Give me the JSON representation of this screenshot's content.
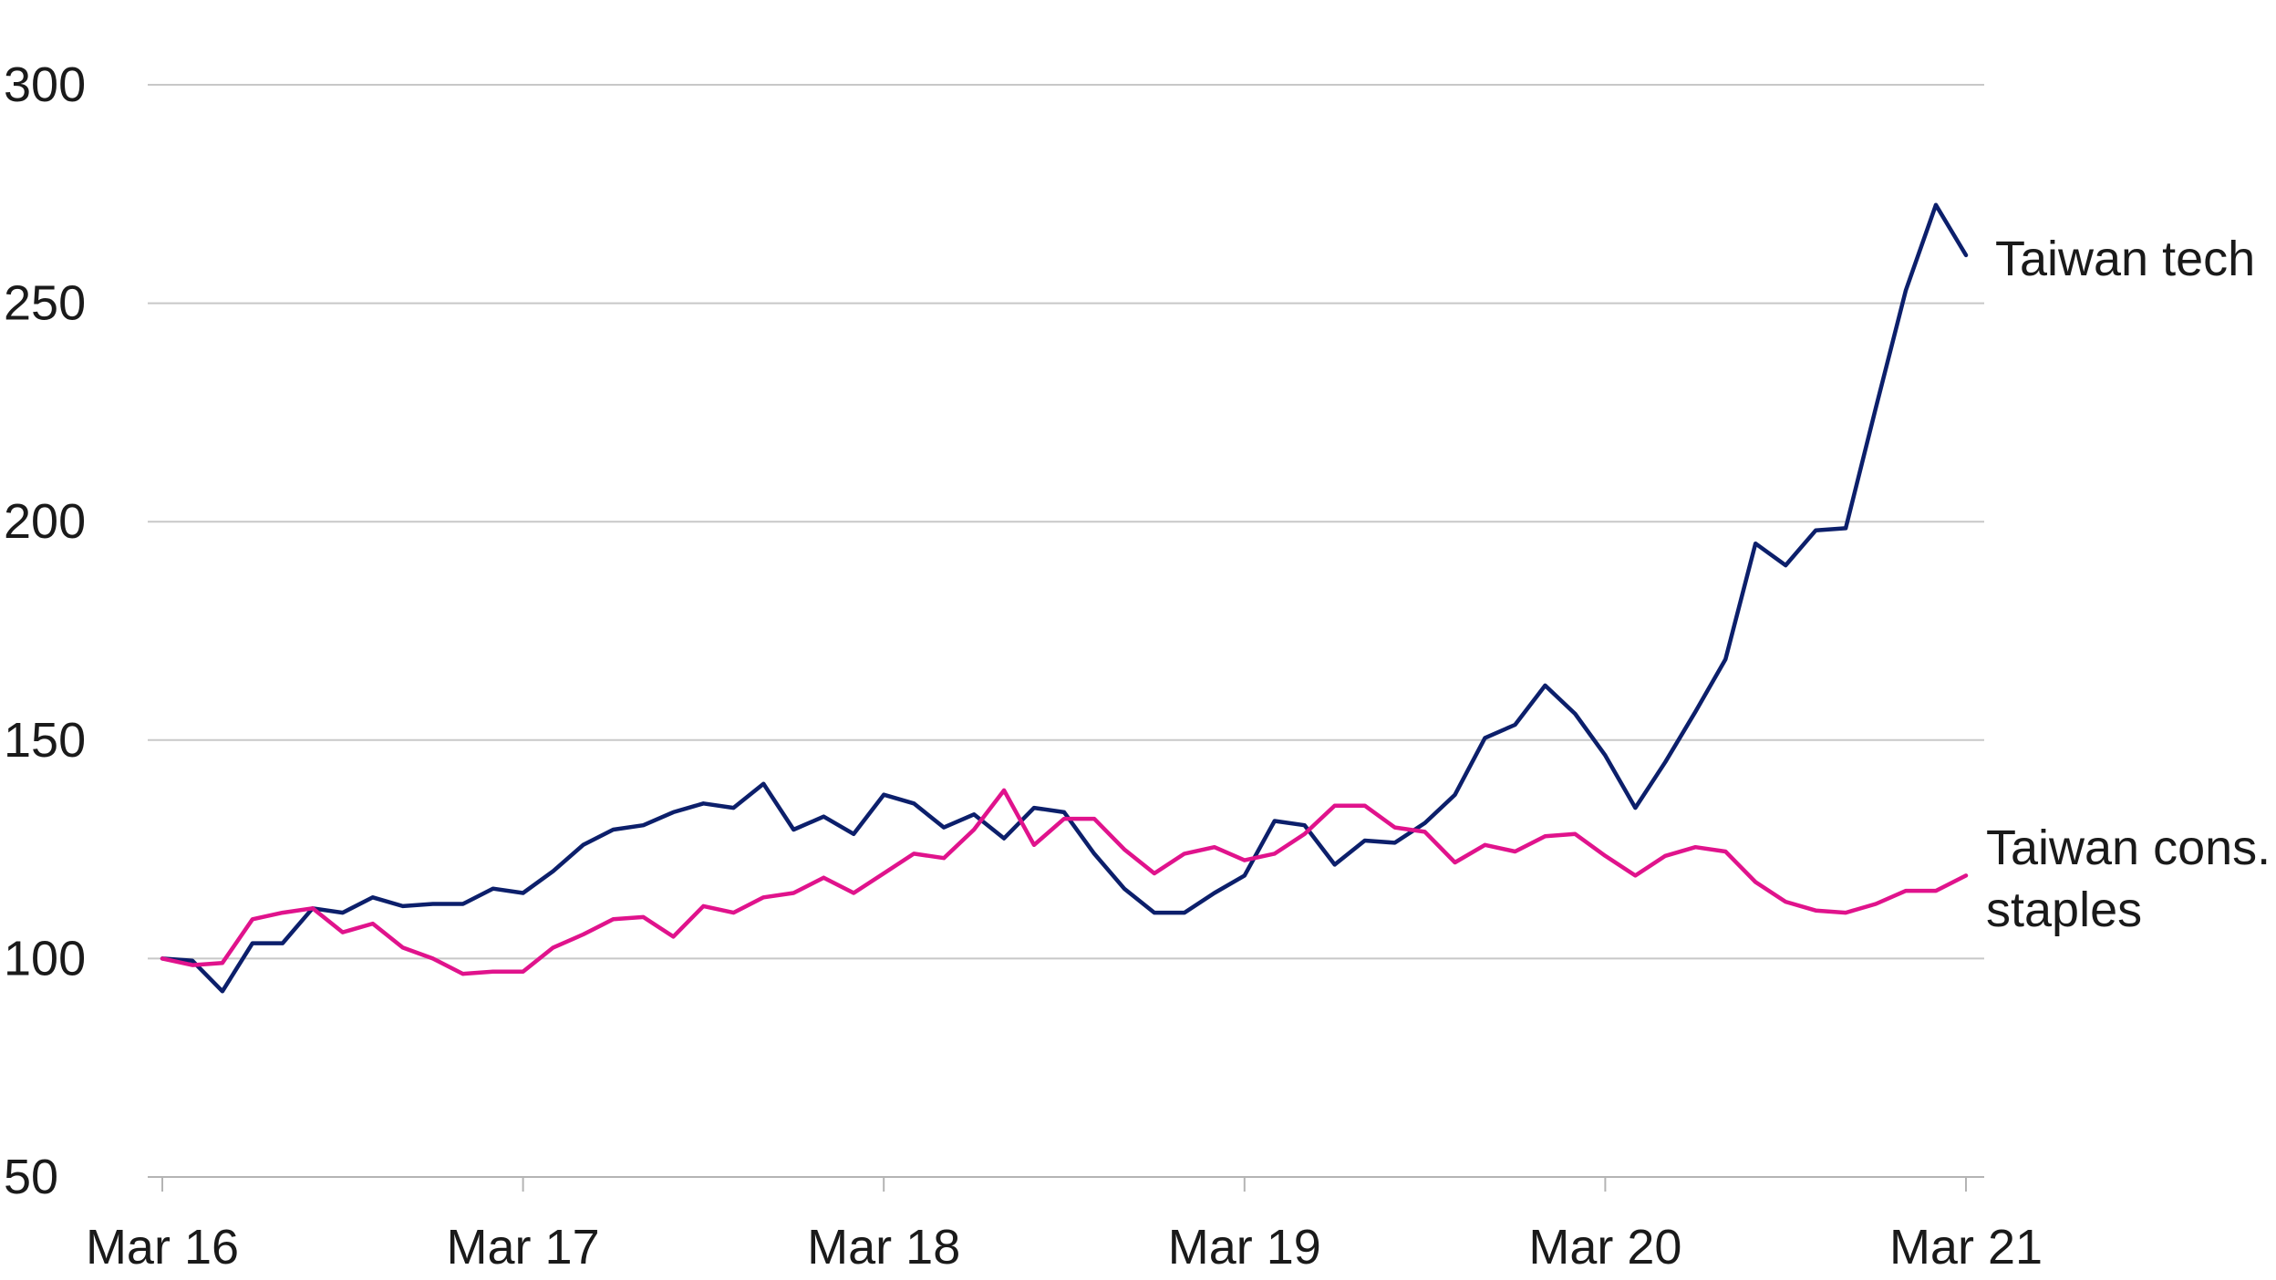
{
  "chart_data": {
    "type": "line",
    "title": "",
    "xlabel": "",
    "ylabel": "",
    "ylim": [
      50,
      300
    ],
    "yticks": [
      50,
      100,
      150,
      200,
      250,
      300
    ],
    "xticks": [
      "Mar 16",
      "Mar 17",
      "Mar 18",
      "Mar 19",
      "Mar 20",
      "Mar 21"
    ],
    "x_start": "Mar 16",
    "x_end": "Mar 21",
    "grid": "horizontal",
    "series": [
      {
        "name": "Taiwan tech",
        "color": "#0c1f6b",
        "values": [
          100,
          99.5,
          92.5,
          103.5,
          103.5,
          111.5,
          110.5,
          114,
          112,
          112.5,
          112.5,
          116,
          115,
          120,
          126,
          129.5,
          130.5,
          133.5,
          135.5,
          134.5,
          140,
          129.5,
          132.5,
          128.5,
          137.5,
          135.5,
          130,
          133,
          127.5,
          134.5,
          133.5,
          124,
          116,
          110.5,
          110.5,
          115,
          119,
          131.5,
          130.5,
          121.5,
          127,
          126.5,
          131,
          137.5,
          150.5,
          153.5,
          162.5,
          156,
          146.5,
          134.5,
          145,
          156.5,
          168.5,
          195,
          190,
          198,
          198.5,
          226,
          253,
          272.5,
          261
        ]
      },
      {
        "name": "Taiwan cons. staples",
        "label_lines": [
          "Taiwan cons.",
          "staples"
        ],
        "color": "#e0138c",
        "values": [
          100,
          98.5,
          99,
          109,
          110.5,
          111.5,
          106,
          108,
          102.5,
          100,
          96.5,
          97,
          97,
          102.5,
          105.5,
          109,
          109.5,
          105,
          112,
          110.5,
          114,
          115,
          118.5,
          115,
          119.5,
          124,
          123,
          129.5,
          138.5,
          126,
          132,
          132,
          125,
          119.5,
          124,
          125.5,
          122.5,
          124,
          128.5,
          135,
          135,
          130,
          129,
          122,
          126,
          124.5,
          128,
          128.5,
          123.5,
          119,
          123.5,
          125.5,
          124.5,
          117.5,
          113,
          111,
          110.5,
          112.5,
          115.5,
          115.5,
          119
        ]
      }
    ]
  }
}
